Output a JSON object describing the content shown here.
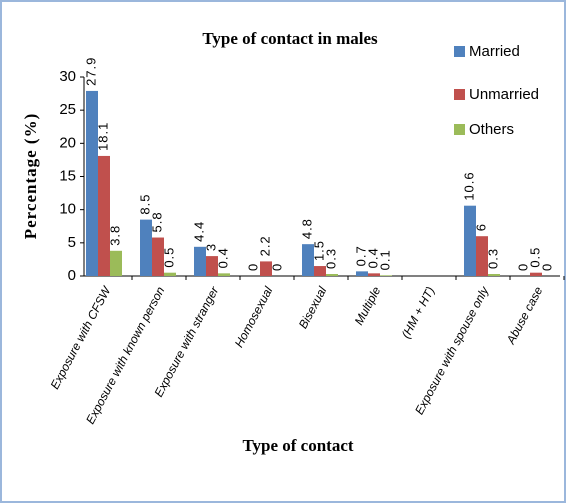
{
  "chart_data": {
    "type": "bar",
    "title": "Type of contact in males",
    "x_label": "Type of contact",
    "y_label": "Percentage (%)",
    "categories": [
      "Exposure with CFSW",
      "Exposure with known person",
      "Exposure with stranger",
      "Homosexual",
      "Bisexual",
      "Multiple",
      "(HM + HT)",
      "Exposure with spouse only",
      "Abuse case"
    ],
    "series": [
      {
        "name": "Married",
        "color": "#4f81bd",
        "values": [
          27.9,
          8.5,
          4.4,
          0,
          4.8,
          0.7,
          null,
          10.6,
          0
        ]
      },
      {
        "name": "Unmarried",
        "color": "#c0504d",
        "values": [
          18.1,
          5.8,
          3,
          2.2,
          1.5,
          0.4,
          null,
          6,
          0.5
        ]
      },
      {
        "name": "Others",
        "color": "#9bbb59",
        "values": [
          3.8,
          0.5,
          0.4,
          0,
          0.3,
          0.1,
          null,
          0.3,
          0
        ]
      }
    ],
    "ylim": [
      0,
      30
    ],
    "yticks": [
      0,
      5,
      10,
      15,
      20,
      25,
      30
    ],
    "grid": false,
    "legend": "top-right"
  }
}
